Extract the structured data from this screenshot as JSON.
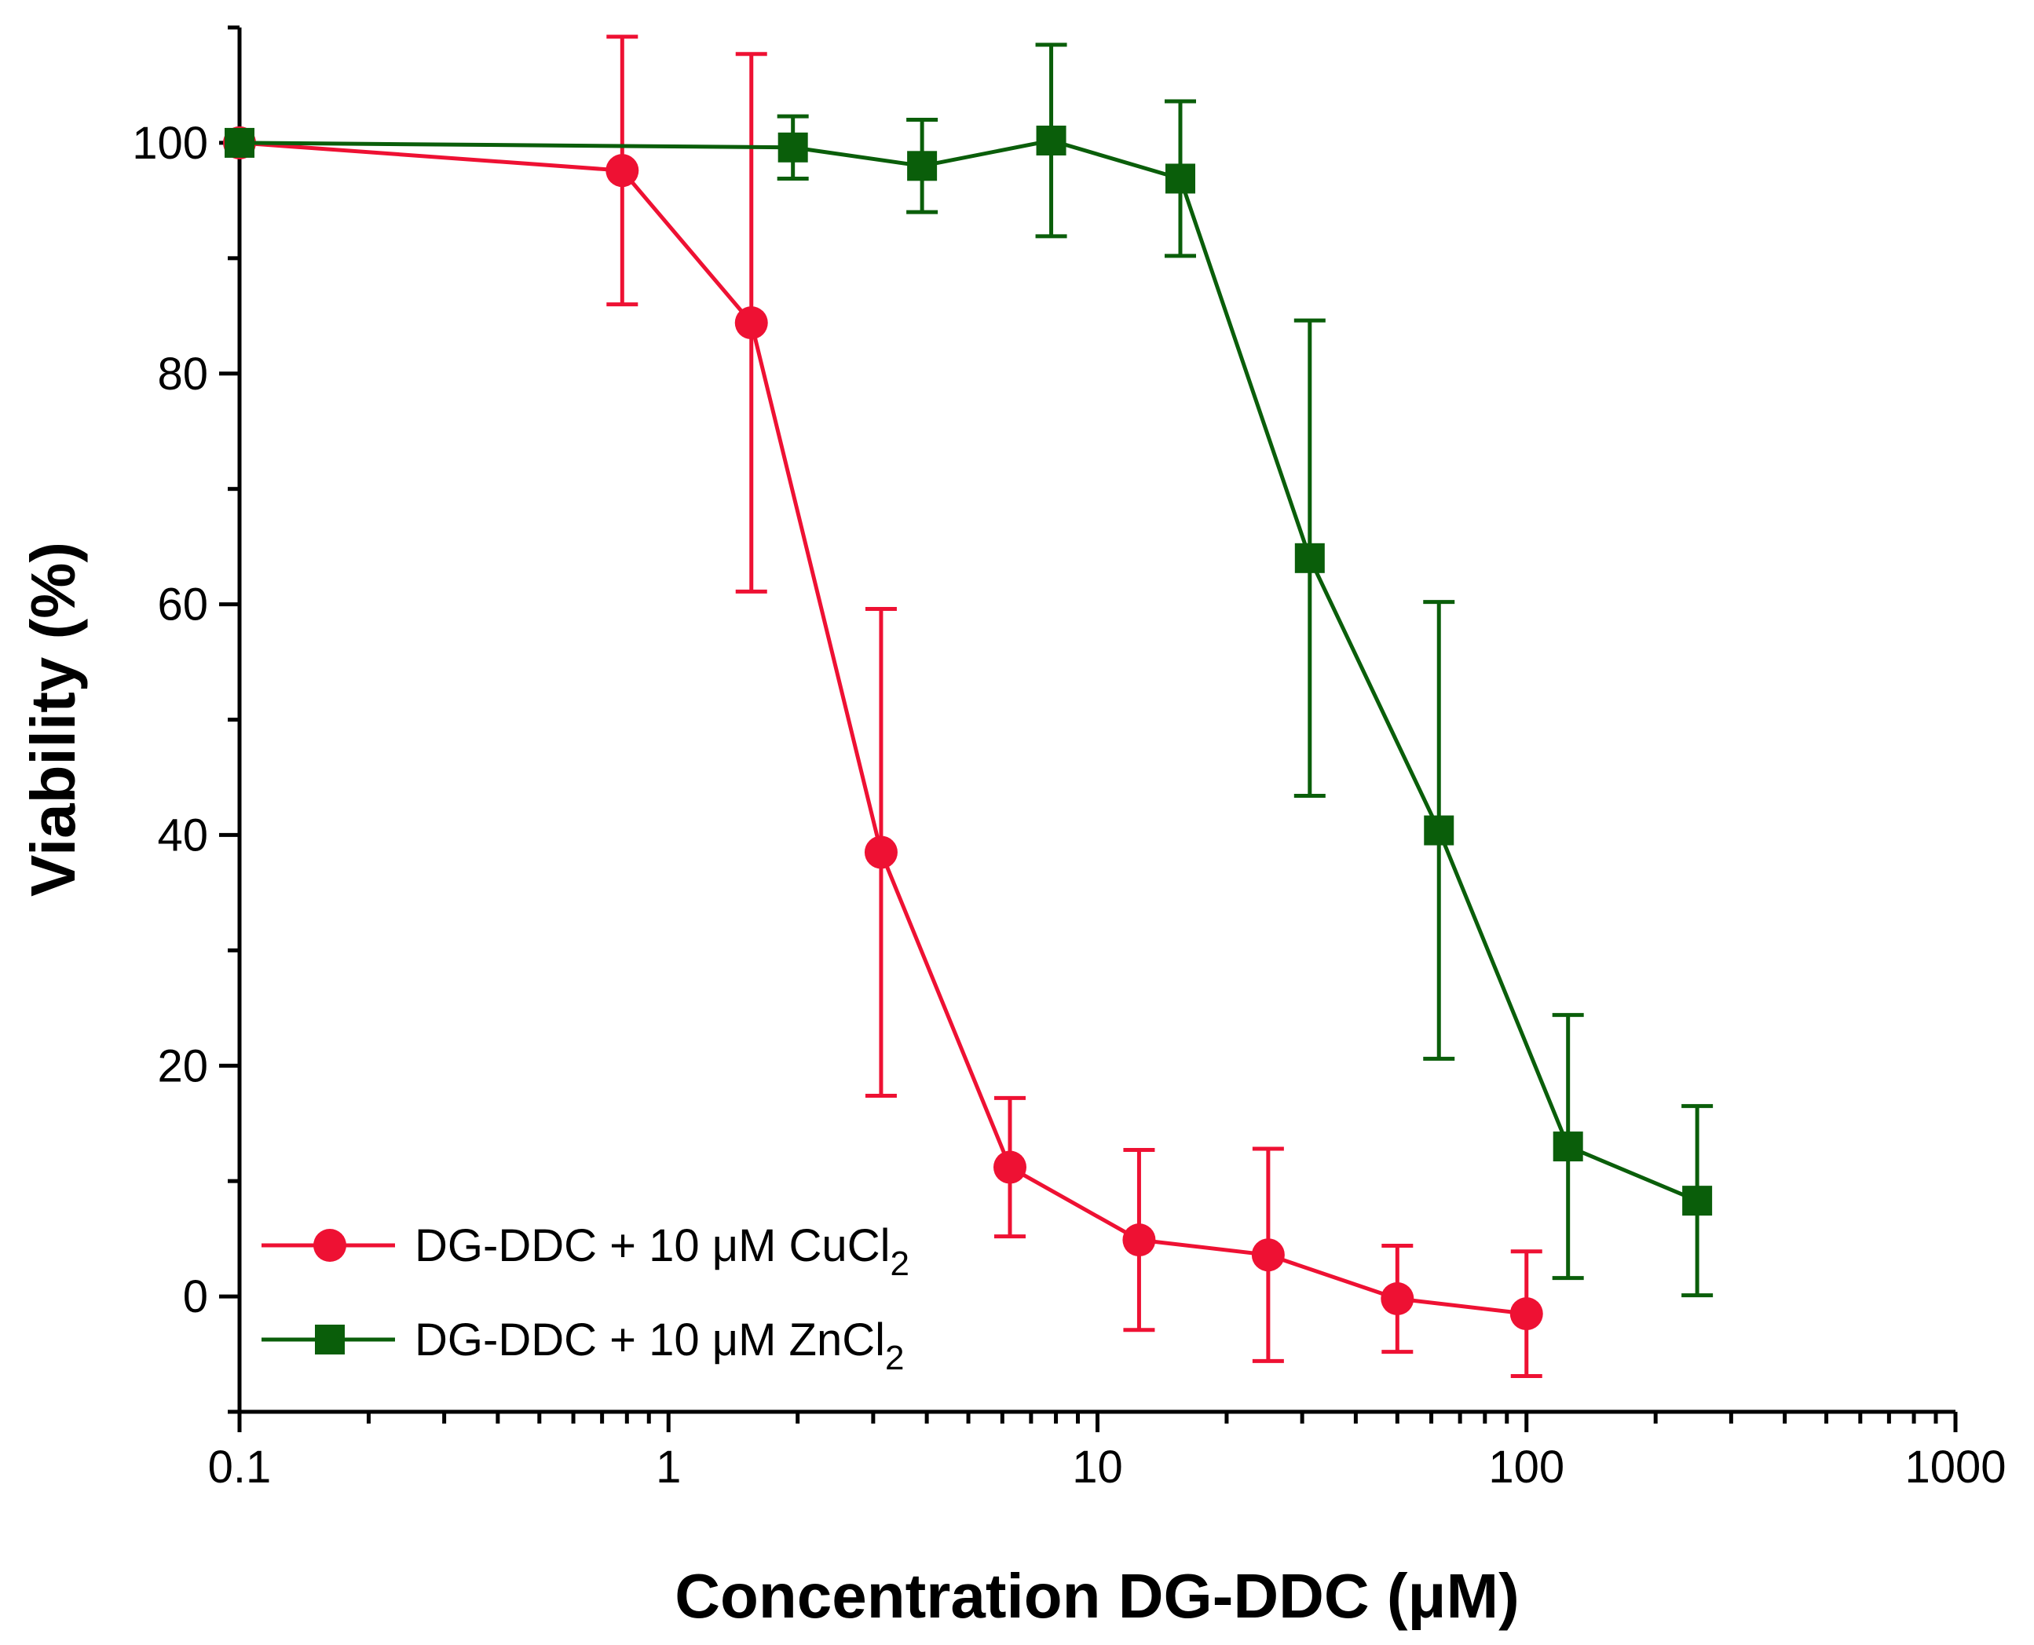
{
  "chart_data": {
    "type": "line",
    "xscale": "log",
    "xlabel": "Concentration DG-DDC (μM)",
    "ylabel": "Viability (%)",
    "xlim": [
      0.1,
      1000
    ],
    "ylim": [
      -10,
      110
    ],
    "x_ticks": [
      0.1,
      1,
      10,
      100,
      1000
    ],
    "x_tick_labels": [
      "0.1",
      "1",
      "10",
      "100",
      "1000"
    ],
    "y_ticks": [
      0,
      20,
      40,
      60,
      80,
      100
    ],
    "y_tick_labels": [
      "0",
      "20",
      "40",
      "60",
      "80",
      "100"
    ],
    "legend_position": "bottom-left",
    "series": [
      {
        "name": "DG-DDC + 10 μM CuCl2",
        "label_main": "DG-DDC + 10 μM CuCl",
        "label_sub": "2",
        "color": "#ee1133",
        "marker": "circle",
        "x": [
          0.1,
          0.78,
          1.56,
          3.13,
          6.25,
          12.5,
          25,
          50,
          100
        ],
        "y": [
          100,
          97.6,
          84.4,
          38.5,
          11.2,
          4.9,
          3.6,
          -0.2,
          -1.5
        ],
        "err": [
          0,
          11.6,
          23.3,
          21.1,
          6.0,
          7.8,
          9.2,
          4.6,
          5.4
        ]
      },
      {
        "name": "DG-DDC + 10 μM ZnCl2",
        "label_main": "DG-DDC + 10 μM ZnCl",
        "label_sub": "2",
        "color": "#0a5e0a",
        "marker": "square",
        "x": [
          0.1,
          1.95,
          3.9,
          7.8,
          15.6,
          31.25,
          62.5,
          125,
          250
        ],
        "y": [
          100,
          99.6,
          98.0,
          100.2,
          96.9,
          64.0,
          40.4,
          13.0,
          8.3
        ],
        "err": [
          0,
          2.7,
          4.0,
          8.3,
          6.7,
          20.6,
          19.8,
          11.4,
          8.2
        ]
      }
    ]
  }
}
